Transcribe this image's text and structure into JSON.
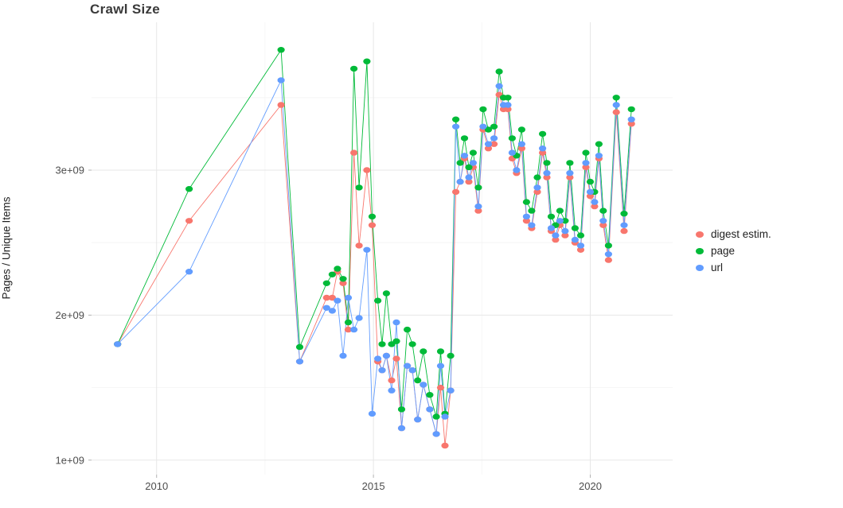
{
  "title": "Crawl Size",
  "colors": {
    "digest": "#F8766D",
    "page": "#00BA38",
    "url": "#619CFF",
    "grid_major": "#E7E7E7",
    "grid_minor": "#F4F4F4",
    "tick_mark": "#B3B3B3",
    "tick_text": "#4D4D4D",
    "title_text": "#3A3A3A",
    "background": "#FFFFFF"
  },
  "chart_data": {
    "type": "line",
    "title": "Crawl Size",
    "xlabel": "",
    "ylabel": "Pages / Unique Items",
    "legend_position": "right",
    "grid": true,
    "values_unit": "billions (1e9)",
    "xlim": [
      2008.5,
      2021.9
    ],
    "ylim_billions": [
      0.9,
      4.02
    ],
    "x_ticks": [
      {
        "value": 2010,
        "label": "2010"
      },
      {
        "value": 2015,
        "label": "2015"
      },
      {
        "value": 2020,
        "label": "2020"
      }
    ],
    "y_ticks": [
      {
        "value": 1,
        "label": "1e+09"
      },
      {
        "value": 2,
        "label": "2e+09"
      },
      {
        "value": 3,
        "label": "3e+09"
      }
    ],
    "x_minor_gridlines": [
      2012.5,
      2017.5
    ],
    "y_minor_gridlines": [
      1.5,
      2.5,
      3.5
    ],
    "x": [
      2009.1,
      2010.75,
      2012.87,
      2013.3,
      2013.92,
      2014.05,
      2014.17,
      2014.3,
      2014.42,
      2014.55,
      2014.67,
      2014.85,
      2014.97,
      2015.1,
      2015.2,
      2015.3,
      2015.42,
      2015.53,
      2015.65,
      2015.78,
      2015.9,
      2016.02,
      2016.15,
      2016.3,
      2016.45,
      2016.55,
      2016.65,
      2016.78,
      2016.9,
      2017.0,
      2017.1,
      2017.2,
      2017.3,
      2017.42,
      2017.53,
      2017.65,
      2017.78,
      2017.9,
      2018.0,
      2018.1,
      2018.2,
      2018.3,
      2018.42,
      2018.53,
      2018.65,
      2018.78,
      2018.9,
      2019.0,
      2019.1,
      2019.2,
      2019.3,
      2019.42,
      2019.53,
      2019.65,
      2019.78,
      2019.9,
      2020.0,
      2020.1,
      2020.2,
      2020.3,
      2020.42,
      2020.6,
      2020.78,
      2020.95
    ],
    "series": [
      {
        "name": "digest estim.",
        "color": "#F8766D",
        "values": [
          1.8,
          2.65,
          3.45,
          1.68,
          2.12,
          2.12,
          2.3,
          2.22,
          1.9,
          3.12,
          2.48,
          3.0,
          2.62,
          1.68,
          1.62,
          1.72,
          1.55,
          1.7,
          1.22,
          1.65,
          1.62,
          1.28,
          1.52,
          1.35,
          1.18,
          1.5,
          1.1,
          1.48,
          2.85,
          2.92,
          3.08,
          2.92,
          3.02,
          2.72,
          3.28,
          3.15,
          3.18,
          3.52,
          3.42,
          3.42,
          3.08,
          2.98,
          3.15,
          2.65,
          2.6,
          2.85,
          3.12,
          2.95,
          2.58,
          2.52,
          2.62,
          2.55,
          2.95,
          2.5,
          2.45,
          3.02,
          2.82,
          2.75,
          3.08,
          2.62,
          2.38,
          3.4,
          2.58,
          3.32
        ]
      },
      {
        "name": "page",
        "color": "#00BA38",
        "values": [
          1.8,
          2.87,
          3.83,
          1.78,
          2.22,
          2.28,
          2.32,
          2.25,
          1.95,
          3.7,
          2.88,
          3.75,
          2.68,
          2.1,
          1.8,
          2.15,
          1.8,
          1.82,
          1.35,
          1.9,
          1.8,
          1.55,
          1.75,
          1.45,
          1.3,
          1.75,
          1.32,
          1.72,
          3.35,
          3.05,
          3.22,
          3.02,
          3.12,
          2.88,
          3.42,
          3.28,
          3.3,
          3.68,
          3.5,
          3.5,
          3.22,
          3.1,
          3.28,
          2.78,
          2.72,
          2.95,
          3.25,
          3.05,
          2.68,
          2.62,
          2.72,
          2.65,
          3.05,
          2.6,
          2.55,
          3.12,
          2.92,
          2.85,
          3.18,
          2.72,
          2.48,
          3.5,
          2.7,
          3.42
        ]
      },
      {
        "name": "url",
        "color": "#619CFF",
        "values": [
          1.8,
          2.3,
          3.62,
          1.68,
          2.05,
          2.03,
          2.1,
          1.72,
          2.12,
          1.9,
          1.98,
          2.45,
          1.32,
          1.7,
          1.62,
          1.72,
          1.48,
          1.95,
          1.22,
          1.65,
          1.62,
          1.28,
          1.52,
          1.35,
          1.18,
          1.65,
          1.3,
          1.48,
          3.3,
          2.92,
          3.1,
          2.95,
          3.05,
          2.75,
          3.3,
          3.18,
          3.22,
          3.58,
          3.45,
          3.45,
          3.12,
          3.0,
          3.18,
          2.68,
          2.62,
          2.88,
          3.15,
          2.98,
          2.6,
          2.55,
          2.65,
          2.58,
          2.98,
          2.52,
          2.48,
          3.05,
          2.85,
          2.78,
          3.1,
          2.65,
          2.42,
          3.45,
          2.62,
          3.35
        ]
      }
    ]
  }
}
